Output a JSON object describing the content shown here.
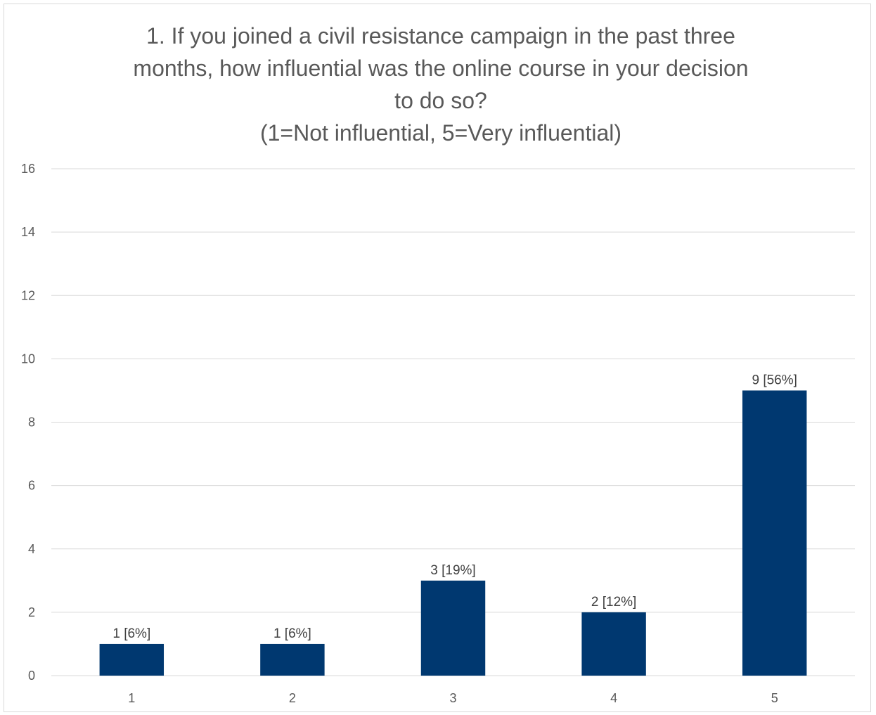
{
  "chart_data": {
    "type": "bar",
    "title_lines": [
      "1. If you joined a civil resistance campaign in the past three",
      "months, how influential was the online course in your decision",
      "to do so?",
      "(1=Not influential, 5=Very influential)"
    ],
    "categories": [
      "1",
      "2",
      "3",
      "4",
      "5"
    ],
    "values": [
      1,
      1,
      3,
      2,
      9
    ],
    "data_labels": [
      "1 [6%]",
      "1 [6%]",
      "3 [19%]",
      "2 [12%]",
      "9 [56%]"
    ],
    "xlabel": "",
    "ylabel": "",
    "ylim": [
      0,
      16
    ],
    "yticks": [
      0,
      2,
      4,
      6,
      8,
      10,
      12,
      14,
      16
    ],
    "grid": true,
    "legend": "none",
    "bar_color": "#003870",
    "grid_color": "#d9d9d9",
    "text_color": "#595959"
  }
}
